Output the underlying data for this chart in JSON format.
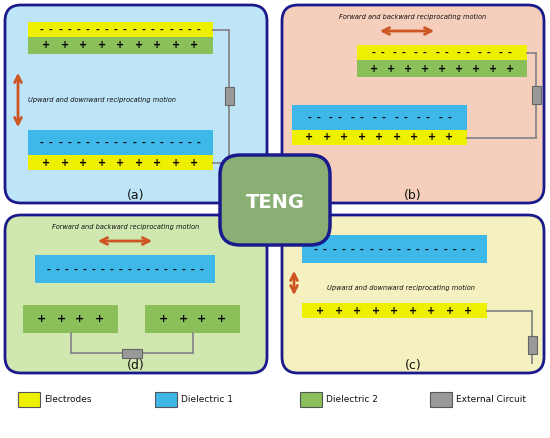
{
  "colors": {
    "yellow": "#EFEF00",
    "blue": "#3DB8E8",
    "green": "#8BBF5A",
    "gray": "#999999",
    "bg_a": "#BEE4F8",
    "bg_b": "#F5CEBC",
    "bg_c": "#F5F0C0",
    "bg_d": "#D0E8B0",
    "bg_center": "#8AAF75",
    "border": "#1A1A8C",
    "arrow": "#CC5522",
    "text": "#111111",
    "wire": "#888888"
  },
  "legend": [
    {
      "label": "Electrodes",
      "color": "#EFEF00"
    },
    {
      "label": "Dielectric 1",
      "color": "#3DB8E8"
    },
    {
      "label": "Dielectric 2",
      "color": "#8BBF5A"
    },
    {
      "label": "External Circuit",
      "color": "#999999"
    }
  ],
  "panels": {
    "a": {
      "bg": "#BEE4F8",
      "label": "(a)"
    },
    "b": {
      "bg": "#F5CEBC",
      "label": "(b)"
    },
    "c": {
      "bg": "#F5F0C0",
      "label": "(c)"
    },
    "d": {
      "bg": "#D0E8B0",
      "label": "(d)"
    }
  }
}
